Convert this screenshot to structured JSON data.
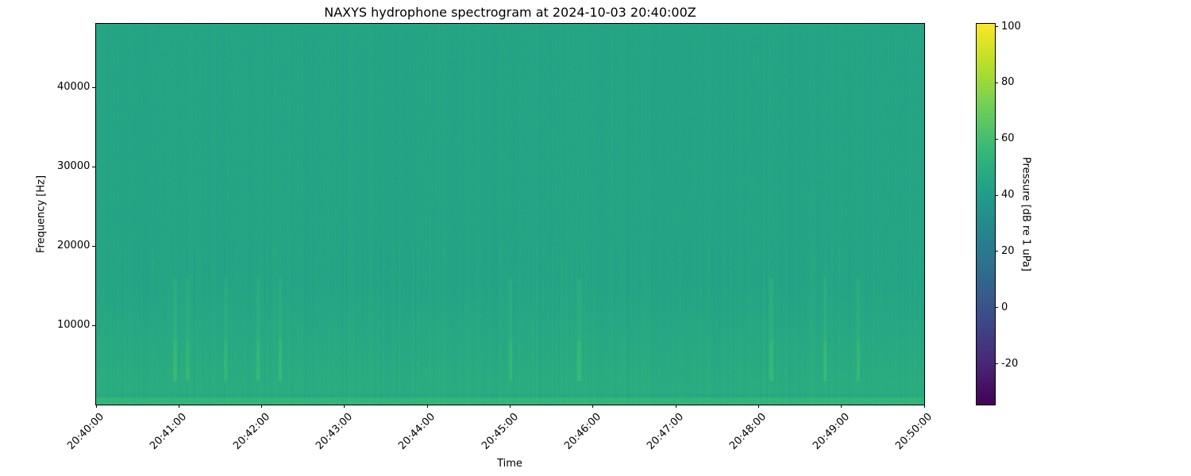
{
  "chart_data": {
    "type": "heatmap",
    "title": "NAXYS hydrophone spectrogram at 2024-10-03 20:40:00Z",
    "xlabel": "Time",
    "ylabel": "Frequency [Hz]",
    "colorbar_label": "Pressure [dB re 1 uPa]",
    "colormap": "viridis",
    "xlim": [
      "20:40:00",
      "20:50:00"
    ],
    "xticks": [
      "20:40:00",
      "20:41:00",
      "20:42:00",
      "20:43:00",
      "20:44:00",
      "20:45:00",
      "20:46:00",
      "20:47:00",
      "20:48:00",
      "20:49:00",
      "20:50:00"
    ],
    "ylim": [
      0,
      48000
    ],
    "yticks": [
      10000,
      20000,
      30000,
      40000
    ],
    "clim": [
      -34.5,
      101
    ],
    "cticks": [
      -20,
      0,
      20,
      40,
      60,
      80,
      100
    ],
    "typical_levels_db": {
      "high_freq": 45,
      "below_15000_hz": 50,
      "below_1000_hz": 55
    },
    "grid": false
  }
}
